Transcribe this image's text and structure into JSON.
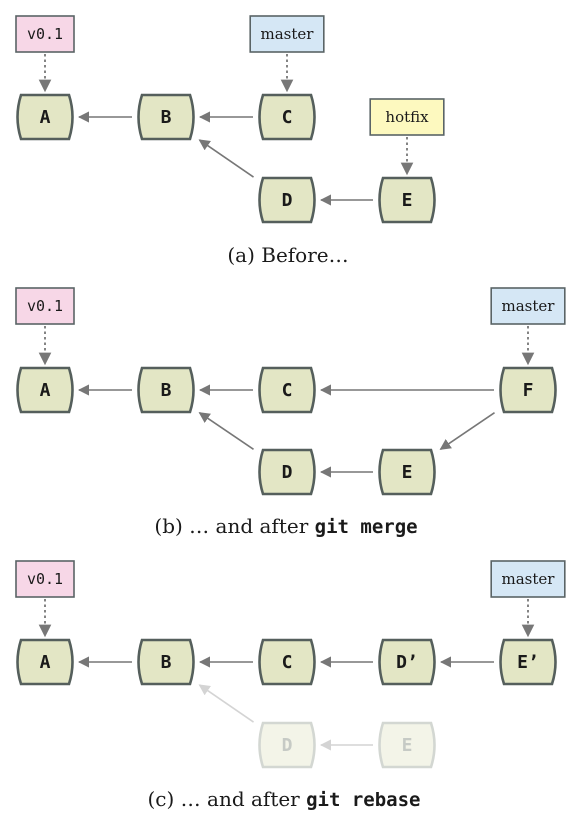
{
  "colors": {
    "node_fill": "#e3e6c5",
    "node_stroke": "#555f5c",
    "tag_pink": "#f7d7e7",
    "tag_blue": "#d5e7f5",
    "tag_yellow": "#fdf9bf"
  },
  "panels": [
    {
      "id": "before",
      "caption": {
        "prefix": "(a) Before…",
        "code": ""
      },
      "nodes": [
        {
          "id": "A",
          "label": "A"
        },
        {
          "id": "B",
          "label": "B"
        },
        {
          "id": "C",
          "label": "C"
        },
        {
          "id": "D",
          "label": "D"
        },
        {
          "id": "E",
          "label": "E"
        }
      ],
      "edges": [
        {
          "from": "B",
          "to": "A"
        },
        {
          "from": "C",
          "to": "B"
        },
        {
          "from": "D",
          "to": "B"
        },
        {
          "from": "E",
          "to": "D"
        }
      ],
      "tags": [
        {
          "label": "v0.1",
          "target": "A",
          "color": "pink",
          "mono": true
        },
        {
          "label": "master",
          "target": "C",
          "color": "blue",
          "mono": false
        },
        {
          "label": "hotfix",
          "target": "E",
          "color": "yellow",
          "mono": false
        }
      ]
    },
    {
      "id": "merge",
      "caption": {
        "prefix": "(b) … and after ",
        "code": "git merge"
      },
      "nodes": [
        {
          "id": "A",
          "label": "A"
        },
        {
          "id": "B",
          "label": "B"
        },
        {
          "id": "C",
          "label": "C"
        },
        {
          "id": "F",
          "label": "F"
        },
        {
          "id": "D",
          "label": "D"
        },
        {
          "id": "E",
          "label": "E"
        }
      ],
      "edges": [
        {
          "from": "B",
          "to": "A"
        },
        {
          "from": "C",
          "to": "B"
        },
        {
          "from": "F",
          "to": "C"
        },
        {
          "from": "F",
          "to": "E"
        },
        {
          "from": "E",
          "to": "D"
        },
        {
          "from": "D",
          "to": "B"
        }
      ],
      "tags": [
        {
          "label": "v0.1",
          "target": "A",
          "color": "pink",
          "mono": true
        },
        {
          "label": "master",
          "target": "F",
          "color": "blue",
          "mono": false
        }
      ]
    },
    {
      "id": "rebase",
      "caption": {
        "prefix": "(c) … and after ",
        "code": "git rebase"
      },
      "nodes": [
        {
          "id": "A",
          "label": "A"
        },
        {
          "id": "B",
          "label": "B"
        },
        {
          "id": "C",
          "label": "C"
        },
        {
          "id": "D2",
          "label": "D’"
        },
        {
          "id": "E2",
          "label": "E’"
        },
        {
          "id": "D",
          "label": "D",
          "faded": true
        },
        {
          "id": "E",
          "label": "E",
          "faded": true
        }
      ],
      "edges": [
        {
          "from": "B",
          "to": "A"
        },
        {
          "from": "C",
          "to": "B"
        },
        {
          "from": "D2",
          "to": "C"
        },
        {
          "from": "E2",
          "to": "D2"
        },
        {
          "from": "D",
          "to": "B",
          "faded": true
        },
        {
          "from": "E",
          "to": "D",
          "faded": true
        }
      ],
      "tags": [
        {
          "label": "v0.1",
          "target": "A",
          "color": "pink",
          "mono": true
        },
        {
          "label": "master",
          "target": "E2",
          "color": "blue",
          "mono": false
        }
      ]
    }
  ]
}
